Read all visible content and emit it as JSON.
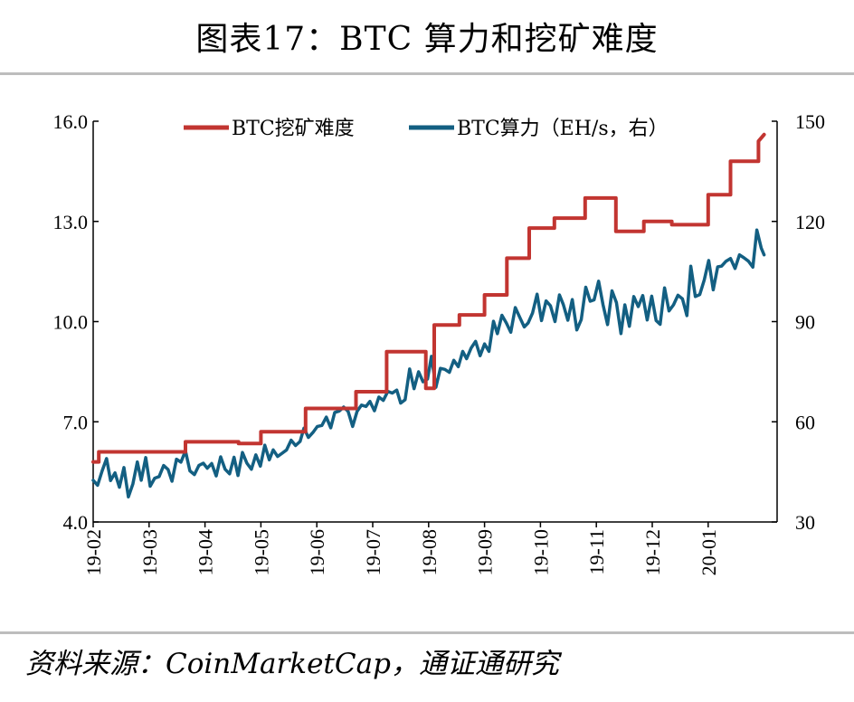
{
  "title": "图表17：BTC 算力和挖矿难度",
  "source": "资料来源：CoinMarketCap，通证通研究",
  "colors": {
    "difficulty": "#c23531",
    "hashrate": "#135f82",
    "axis": "#000000",
    "rule": "#bdbdbd"
  },
  "chart_data": {
    "type": "line",
    "x_tick_labels": [
      "19-02",
      "19-03",
      "19-04",
      "19-05",
      "19-06",
      "19-07",
      "19-08",
      "19-09",
      "19-10",
      "19-11",
      "19-12",
      "20-01"
    ],
    "y_left": {
      "ticks": [
        "4.0",
        "7.0",
        "10.0",
        "13.0",
        "16.0"
      ],
      "range": [
        4,
        16
      ]
    },
    "y_right": {
      "ticks": [
        "30",
        "60",
        "90",
        "120",
        "150"
      ],
      "range": [
        30,
        150
      ]
    },
    "grid": false,
    "legend_position": "top",
    "series": [
      {
        "name": "BTC挖矿难度",
        "axis": "left",
        "style": "step",
        "points": [
          [
            0.0,
            5.8
          ],
          [
            0.1,
            5.8
          ],
          [
            0.1,
            6.1
          ],
          [
            1.65,
            6.1
          ],
          [
            1.65,
            6.4
          ],
          [
            2.6,
            6.4
          ],
          [
            2.6,
            6.35
          ],
          [
            3.0,
            6.35
          ],
          [
            3.0,
            6.7
          ],
          [
            3.8,
            6.7
          ],
          [
            3.8,
            7.4
          ],
          [
            4.7,
            7.4
          ],
          [
            4.7,
            7.9
          ],
          [
            5.25,
            7.9
          ],
          [
            5.25,
            9.1
          ],
          [
            5.95,
            9.1
          ],
          [
            5.95,
            8.0
          ],
          [
            6.1,
            8.0
          ],
          [
            6.1,
            9.9
          ],
          [
            6.55,
            9.9
          ],
          [
            6.55,
            10.2
          ],
          [
            7.0,
            10.2
          ],
          [
            7.0,
            10.8
          ],
          [
            7.4,
            10.8
          ],
          [
            7.4,
            11.9
          ],
          [
            7.8,
            11.9
          ],
          [
            7.8,
            12.8
          ],
          [
            8.25,
            12.8
          ],
          [
            8.25,
            13.1
          ],
          [
            8.8,
            13.1
          ],
          [
            8.8,
            13.7
          ],
          [
            9.35,
            13.7
          ],
          [
            9.35,
            12.7
          ],
          [
            9.85,
            12.7
          ],
          [
            9.85,
            13.0
          ],
          [
            10.35,
            13.0
          ],
          [
            10.35,
            12.9
          ],
          [
            11.0,
            12.9
          ],
          [
            11.0,
            13.8
          ],
          [
            11.4,
            13.8
          ],
          [
            11.4,
            14.8
          ],
          [
            11.9,
            14.8
          ],
          [
            11.9,
            15.4
          ],
          [
            12.0,
            15.6
          ]
        ]
      },
      {
        "name": "BTC算力（EH/s，右）",
        "axis": "right",
        "style": "line",
        "points": [
          [
            0.0,
            42.5
          ],
          [
            0.08,
            41.0
          ],
          [
            0.16,
            45.3
          ],
          [
            0.24,
            49.0
          ],
          [
            0.31,
            42.4
          ],
          [
            0.39,
            44.7
          ],
          [
            0.47,
            40.4
          ],
          [
            0.55,
            46.3
          ],
          [
            0.63,
            37.5
          ],
          [
            0.71,
            41.4
          ],
          [
            0.79,
            48.0
          ],
          [
            0.86,
            42.5
          ],
          [
            0.94,
            49.3
          ],
          [
            1.02,
            40.7
          ],
          [
            1.1,
            43.1
          ],
          [
            1.18,
            43.6
          ],
          [
            1.26,
            46.9
          ],
          [
            1.34,
            45.7
          ],
          [
            1.41,
            42.2
          ],
          [
            1.49,
            48.8
          ],
          [
            1.57,
            47.9
          ],
          [
            1.65,
            51.3
          ],
          [
            1.73,
            45.3
          ],
          [
            1.81,
            44.2
          ],
          [
            1.89,
            46.9
          ],
          [
            1.97,
            47.6
          ],
          [
            2.04,
            46.1
          ],
          [
            2.12,
            47.5
          ],
          [
            2.2,
            43.8
          ],
          [
            2.28,
            49.5
          ],
          [
            2.36,
            45.8
          ],
          [
            2.44,
            44.4
          ],
          [
            2.52,
            49.4
          ],
          [
            2.59,
            43.9
          ],
          [
            2.67,
            50.8
          ],
          [
            2.75,
            47.6
          ],
          [
            2.83,
            45.8
          ],
          [
            2.91,
            50.1
          ],
          [
            2.99,
            46.7
          ],
          [
            3.07,
            53.0
          ],
          [
            3.15,
            48.6
          ],
          [
            3.22,
            51.6
          ],
          [
            3.3,
            49.6
          ],
          [
            3.38,
            50.6
          ],
          [
            3.46,
            51.6
          ],
          [
            3.54,
            54.5
          ],
          [
            3.62,
            52.9
          ],
          [
            3.7,
            54.1
          ],
          [
            3.77,
            58.1
          ],
          [
            3.85,
            55.3
          ],
          [
            3.93,
            56.8
          ],
          [
            4.01,
            58.6
          ],
          [
            4.09,
            58.9
          ],
          [
            4.17,
            61.4
          ],
          [
            4.25,
            58.2
          ],
          [
            4.32,
            62.8
          ],
          [
            4.4,
            63.2
          ],
          [
            4.48,
            64.4
          ],
          [
            4.56,
            63.1
          ],
          [
            4.64,
            58.6
          ],
          [
            4.72,
            63.1
          ],
          [
            4.8,
            65.0
          ],
          [
            4.88,
            64.6
          ],
          [
            4.95,
            66.1
          ],
          [
            5.03,
            63.3
          ],
          [
            5.11,
            67.4
          ],
          [
            5.19,
            66.4
          ],
          [
            5.27,
            69.1
          ],
          [
            5.35,
            68.6
          ],
          [
            5.43,
            69.5
          ],
          [
            5.5,
            65.6
          ],
          [
            5.58,
            66.6
          ],
          [
            5.66,
            75.8
          ],
          [
            5.74,
            69.9
          ],
          [
            5.82,
            75.0
          ],
          [
            5.9,
            72.0
          ],
          [
            5.98,
            72.8
          ],
          [
            6.05,
            79.6
          ],
          [
            6.13,
            70.3
          ],
          [
            6.21,
            76.0
          ],
          [
            6.29,
            75.7
          ],
          [
            6.37,
            74.8
          ],
          [
            6.45,
            78.4
          ],
          [
            6.53,
            76.5
          ],
          [
            6.61,
            81.1
          ],
          [
            6.68,
            78.9
          ],
          [
            6.76,
            82.1
          ],
          [
            6.84,
            84.1
          ],
          [
            6.92,
            79.8
          ],
          [
            7.0,
            83.3
          ],
          [
            7.08,
            81.1
          ],
          [
            7.16,
            90.1
          ],
          [
            7.23,
            86.4
          ],
          [
            7.31,
            91.9
          ],
          [
            7.39,
            89.6
          ],
          [
            7.47,
            86.8
          ],
          [
            7.55,
            94.2
          ],
          [
            7.63,
            91.3
          ],
          [
            7.71,
            88.4
          ],
          [
            7.78,
            89.6
          ],
          [
            7.86,
            92.6
          ],
          [
            7.94,
            98.2
          ],
          [
            8.02,
            90.3
          ],
          [
            8.1,
            96.2
          ],
          [
            8.18,
            94.7
          ],
          [
            8.26,
            90.0
          ],
          [
            8.34,
            98.0
          ],
          [
            8.41,
            95.1
          ],
          [
            8.49,
            90.4
          ],
          [
            8.57,
            96.6
          ],
          [
            8.65,
            87.5
          ],
          [
            8.73,
            90.6
          ],
          [
            8.81,
            100.3
          ],
          [
            8.89,
            96.1
          ],
          [
            8.96,
            96.5
          ],
          [
            9.04,
            102.1
          ],
          [
            9.12,
            95.0
          ],
          [
            9.2,
            89.1
          ],
          [
            9.28,
            99.2
          ],
          [
            9.36,
            95.7
          ],
          [
            9.44,
            86.4
          ],
          [
            9.51,
            95.0
          ],
          [
            9.59,
            88.6
          ],
          [
            9.67,
            97.5
          ],
          [
            9.75,
            94.5
          ],
          [
            9.83,
            97.8
          ],
          [
            9.91,
            90.5
          ],
          [
            9.99,
            97.6
          ],
          [
            10.07,
            90.3
          ],
          [
            10.14,
            89.2
          ],
          [
            10.22,
            100.1
          ],
          [
            10.3,
            93.2
          ],
          [
            10.38,
            95.0
          ],
          [
            10.46,
            97.9
          ],
          [
            10.54,
            96.8
          ],
          [
            10.62,
            91.8
          ],
          [
            10.69,
            106.6
          ],
          [
            10.77,
            97.5
          ],
          [
            10.85,
            98.1
          ],
          [
            10.93,
            102.5
          ],
          [
            11.01,
            108.3
          ],
          [
            11.09,
            99.5
          ],
          [
            11.17,
            106.4
          ],
          [
            11.24,
            106.6
          ],
          [
            11.32,
            108.1
          ],
          [
            11.4,
            108.9
          ],
          [
            11.48,
            105.9
          ],
          [
            11.56,
            110.0
          ],
          [
            11.64,
            109.1
          ],
          [
            11.72,
            108.1
          ],
          [
            11.8,
            106.3
          ],
          [
            11.87,
            117.4
          ],
          [
            11.95,
            112.0
          ],
          [
            12.0,
            110.0
          ]
        ]
      }
    ]
  }
}
